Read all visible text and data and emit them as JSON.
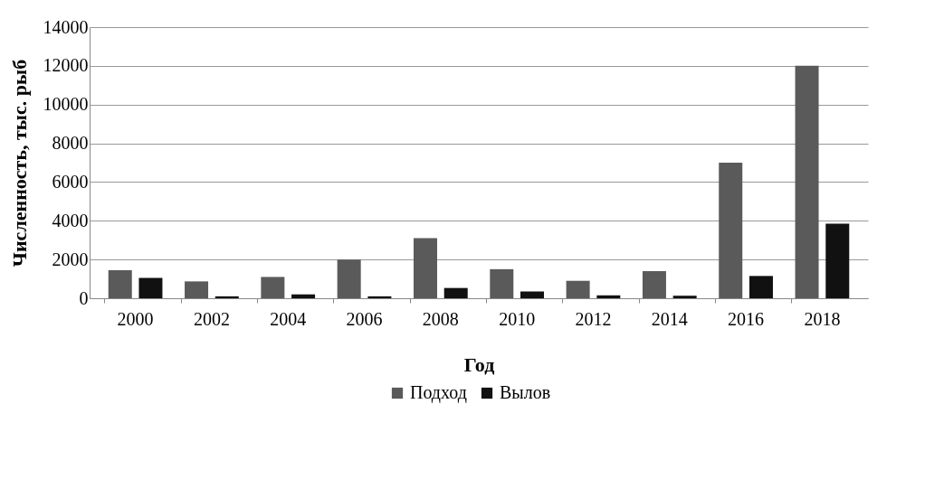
{
  "chart_data": {
    "type": "bar",
    "categories": [
      "2000",
      "2002",
      "2004",
      "2006",
      "2008",
      "2010",
      "2012",
      "2014",
      "2016",
      "2018"
    ],
    "series": [
      {
        "name": "Подход",
        "color": "#5a5a5a",
        "values": [
          1450,
          870,
          1100,
          2000,
          3100,
          1500,
          900,
          1400,
          7000,
          12000
        ]
      },
      {
        "name": "Вылов",
        "color": "#111111",
        "values": [
          1050,
          100,
          200,
          100,
          530,
          350,
          150,
          130,
          1150,
          3850
        ]
      }
    ],
    "xlabel": "Год",
    "ylabel": "Численность, тыс. рыб",
    "ylim": [
      0,
      14000
    ],
    "yticks": [
      0,
      2000,
      4000,
      6000,
      8000,
      10000,
      12000,
      14000
    ],
    "grid": "y",
    "legend": "bottom"
  }
}
